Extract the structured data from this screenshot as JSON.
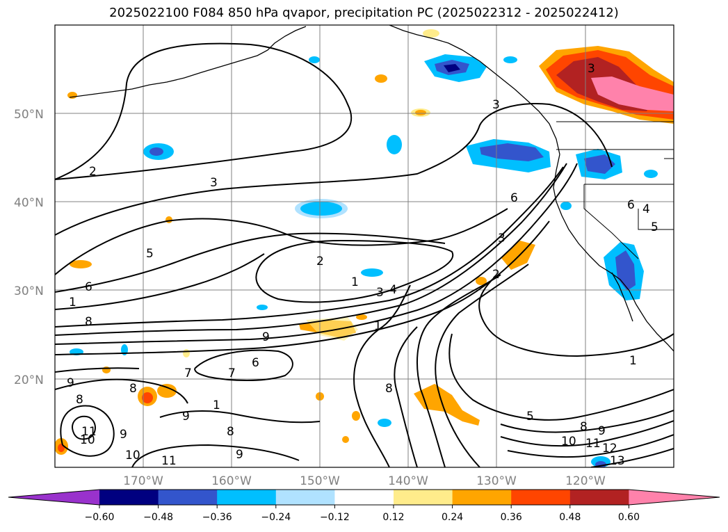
{
  "title": "2025022100 F084 850 hPa qvapor, precipitation PC (2025022312 - 2025022412)",
  "map": {
    "lat_labels": [
      "50°N",
      "40°N",
      "30°N",
      "20°N"
    ],
    "lon_labels": [
      "170°W",
      "160°W",
      "150°W",
      "140°W",
      "130°W",
      "120°W"
    ],
    "contour_labels": [
      "2",
      "3",
      "5",
      "6",
      "1",
      "8",
      "2",
      "1",
      "3",
      "4",
      "3",
      "2",
      "1",
      "6",
      "3",
      "3",
      "4",
      "5",
      "6",
      "9",
      "7",
      "7",
      "6",
      "8",
      "8",
      "9",
      "9",
      "9",
      "10",
      "10",
      "11",
      "8",
      "8",
      "9",
      "5",
      "8",
      "9",
      "10",
      "11",
      "12",
      "13",
      "1",
      "1",
      "11"
    ]
  },
  "colorbar": {
    "colors": [
      "#9932cc",
      "#000080",
      "#3355cc",
      "#00bfff",
      "#b0e2ff",
      "#ffffff",
      "#ffec8b",
      "#ffa500",
      "#ff4500",
      "#b22222",
      "#ff82ab"
    ],
    "tick_labels": [
      "−0.60",
      "−0.48",
      "−0.36",
      "−0.24",
      "−0.12",
      "0.12",
      "0.24",
      "0.36",
      "0.48",
      "0.60"
    ]
  },
  "colors": {
    "grid": "#808080",
    "contour": "#000000",
    "coast": "#000000"
  }
}
